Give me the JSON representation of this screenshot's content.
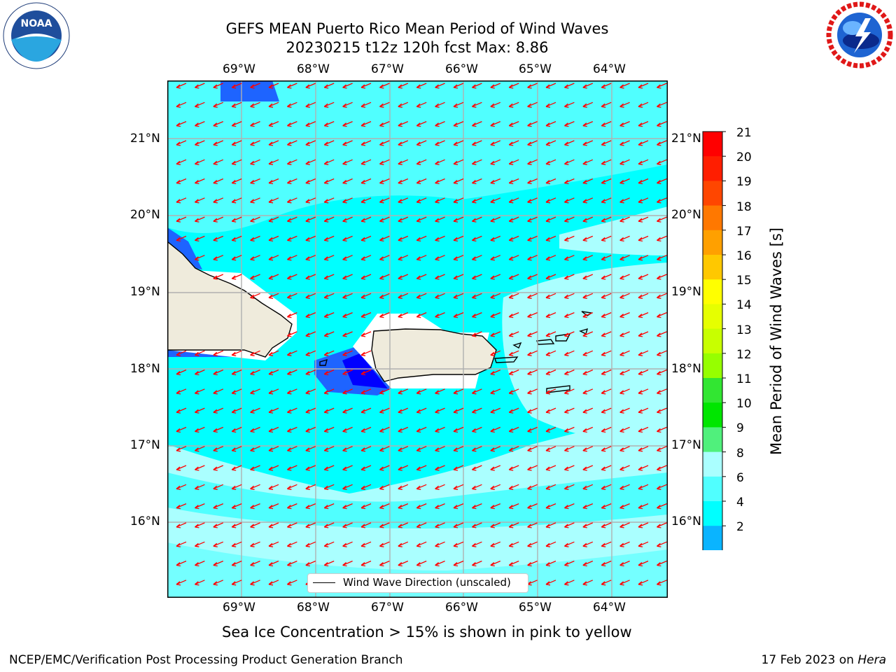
{
  "title_line1": "GEFS MEAN Puerto Rico Mean Period of Wind Waves",
  "title_line2": "20230215 t12z 120h fcst   Max: 8.86",
  "lon_ticks": [
    "69°W",
    "68°W",
    "67°W",
    "66°W",
    "65°W",
    "64°W"
  ],
  "lat_ticks": [
    "21°N",
    "20°N",
    "19°N",
    "18°N",
    "17°N",
    "16°N"
  ],
  "legend_label": "Wind Wave Direction (unscaled)",
  "colorbar": {
    "label": "Mean Period of Wind Waves [s]",
    "ticks": [
      "21",
      "20",
      "19",
      "18",
      "17",
      "16",
      "15",
      "14",
      "13",
      "12",
      "11",
      "10",
      "9",
      "8",
      "6",
      "4",
      "2"
    ],
    "colors": [
      "#ff0000",
      "#ff1e00",
      "#ff4600",
      "#ff7800",
      "#ffa000",
      "#ffc800",
      "#ffff00",
      "#e6ff00",
      "#c8ff00",
      "#96ff00",
      "#32e632",
      "#00e600",
      "#50f07c",
      "#aaffff",
      "#50ffff",
      "#00ffff",
      "#0ab4ff",
      "#1e64ff",
      "#0000ff"
    ]
  },
  "note": "Sea Ice Concentration > 15% is shown in pink to yellow",
  "footer_left": "NCEP/EMC/Verification Post Processing Product Generation Branch",
  "footer_right_prefix": "17 Feb 2023 on ",
  "footer_right_host": "Hera",
  "logos": {
    "left": "NOAA",
    "right": "NATIONAL WEATHER SERVICE"
  }
}
